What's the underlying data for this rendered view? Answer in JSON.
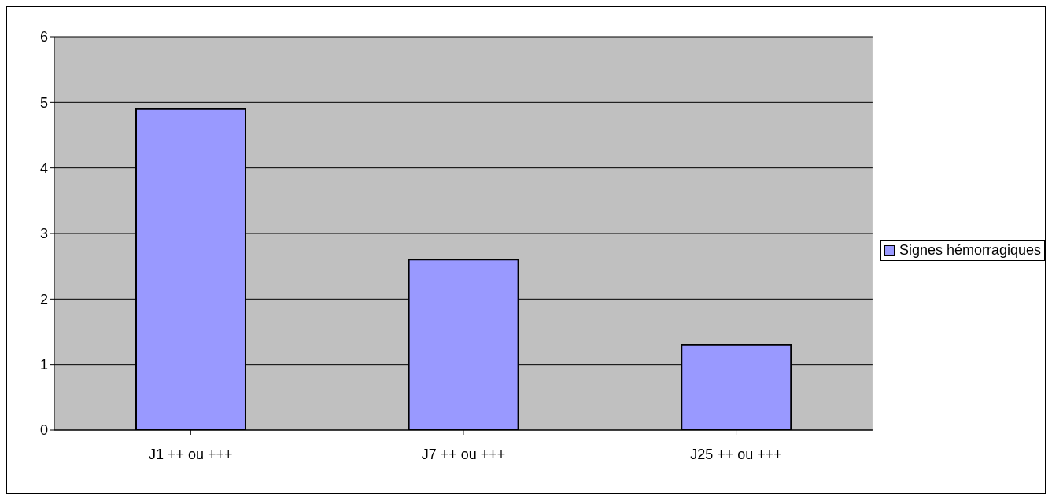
{
  "chart_data": {
    "type": "bar",
    "categories": [
      "J1 ++ ou +++",
      "J7 ++ ou +++",
      "J25 ++ ou +++"
    ],
    "series": [
      {
        "name": "Signes hémorragiques",
        "color": "#9999ff",
        "values": [
          4.9,
          2.6,
          1.3
        ]
      }
    ],
    "ylim": [
      0,
      6
    ],
    "yticks": [
      0,
      1,
      2,
      3,
      4,
      5,
      6
    ],
    "grid": "y",
    "legend": "right"
  }
}
